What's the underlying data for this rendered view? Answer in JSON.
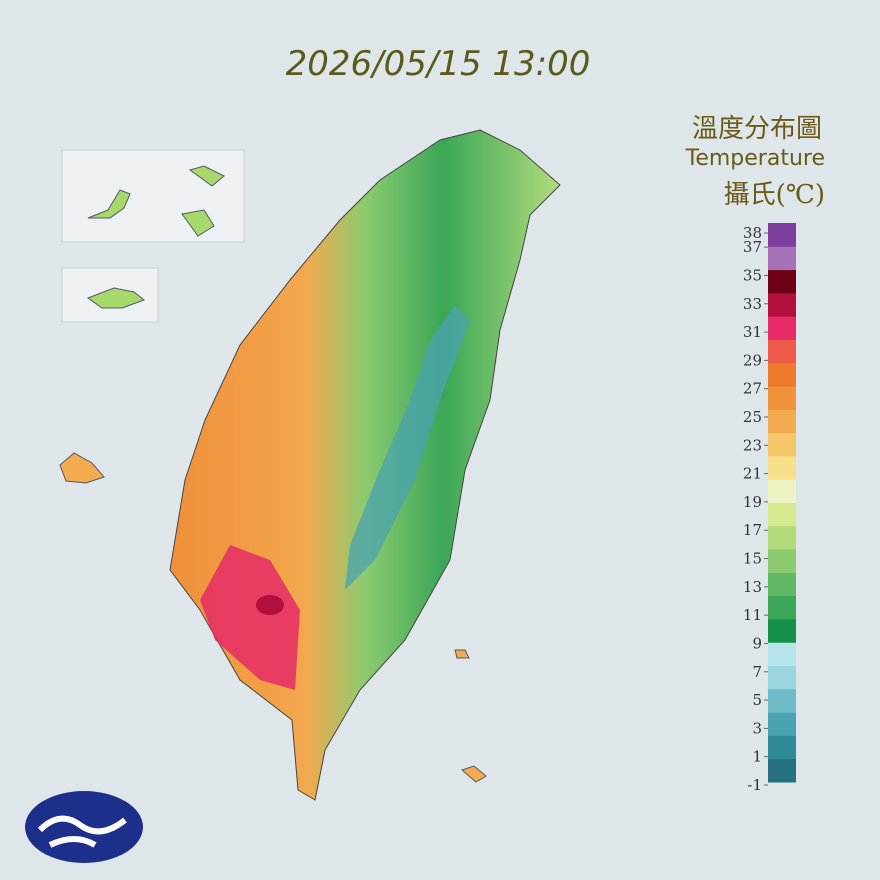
{
  "title": "2026/05/15 13:00",
  "legend": {
    "title": "溫度分布圖",
    "subtitle": "Temperature",
    "unit": "攝氏(℃)",
    "ticks": [
      38,
      37,
      35,
      33,
      31,
      29,
      27,
      25,
      23,
      21,
      19,
      17,
      15,
      13,
      11,
      9,
      7,
      5,
      3,
      1,
      -1
    ],
    "colors": [
      "#257180",
      "#2f8a98",
      "#4aa3b0",
      "#6dbcc7",
      "#9ad6df",
      "#b6e6ec",
      "#13904a",
      "#3aa656",
      "#62b965",
      "#8ccb70",
      "#b2dc7c",
      "#d6ea8e",
      "#eef3c4",
      "#f8e08a",
      "#f6c76a",
      "#f3ab50",
      "#f0923a",
      "#ee7a2c",
      "#ee5a48",
      "#e62a66",
      "#b2103c",
      "#6e0016",
      "#a772b8",
      "#7e3e9e"
    ]
  }
}
